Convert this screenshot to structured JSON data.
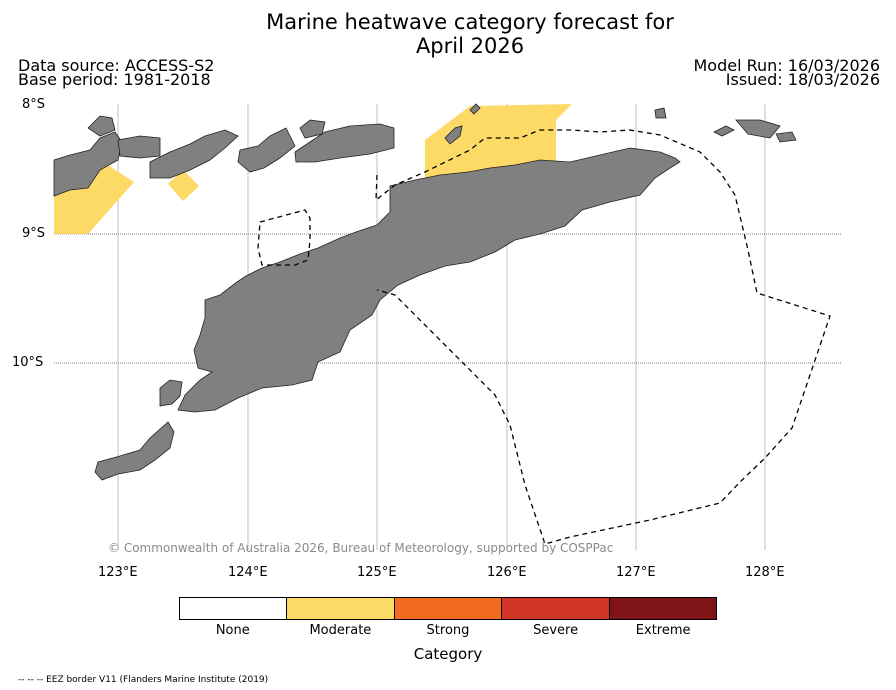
{
  "title": {
    "line1": "Marine heatwave category forecast for",
    "line2": "April 2026"
  },
  "meta": {
    "data_source": "Data source: ACCESS-S2",
    "base_period": "Base period: 1981-2018",
    "model_run": "Model Run: 16/03/2026",
    "issued": "Issued: 18/03/2026"
  },
  "axes": {
    "lat_labels": [
      "8°S",
      "9°S",
      "10°S"
    ],
    "lon_labels": [
      "123°E",
      "124°E",
      "125°E",
      "126°E",
      "127°E",
      "128°E"
    ]
  },
  "copyright": "© Commonwealth of Australia 2026, Bureau of Meteorology, supported by COSPPac",
  "legend": {
    "title": "Category",
    "categories": [
      {
        "label": "None",
        "color": "#ffffff"
      },
      {
        "label": "Moderate",
        "color": "#fdd966"
      },
      {
        "label": "Strong",
        "color": "#f26b21"
      },
      {
        "label": "Severe",
        "color": "#d13628"
      },
      {
        "label": "Extreme",
        "color": "#7e1416"
      }
    ]
  },
  "footnote": "-- -- -- EEZ border V11 (Flanders Marine Institute (2019)",
  "colors": {
    "land": "#808080",
    "moderate": "#fdd966",
    "grid": "#b0b0b0"
  }
}
